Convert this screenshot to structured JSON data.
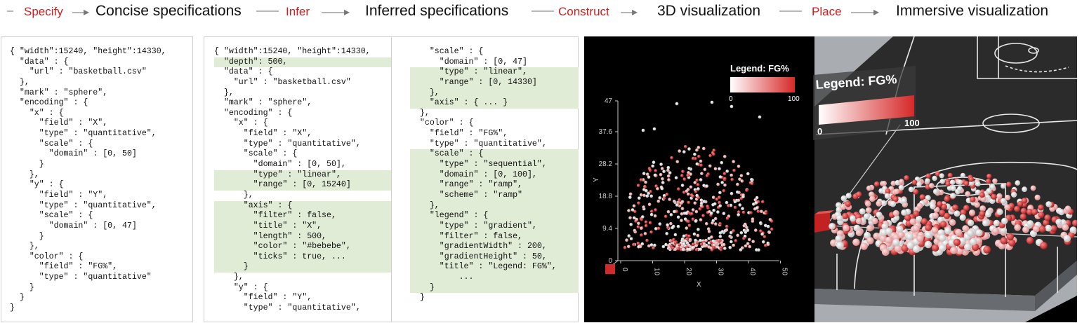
{
  "pipeline": {
    "dash_start": "–",
    "steps": [
      "Specify",
      "Infer",
      "Construct",
      "Place"
    ],
    "specs": [
      "Concise specifications",
      "Inferred specifications",
      "3D visualization",
      "Immersive visualization"
    ]
  },
  "concise_code": [
    "{ \"width\":15240, \"height\":14330,",
    "  \"data\" : {",
    "    \"url\" : \"basketball.csv\"",
    "  },",
    "  \"mark\" : \"sphere\",",
    "  \"encoding\" : {",
    "    \"x\" : {",
    "      \"field\" : \"X\",",
    "      \"type\" : \"quantitative\",",
    "      \"scale\" : {",
    "        \"domain\" : [0, 50]",
    "      }",
    "    },",
    "    \"y\" : {",
    "      \"field\" : \"Y\",",
    "      \"type\" : \"quantitative\",",
    "      \"scale\" : {",
    "        \"domain\" : [0, 47]",
    "      }",
    "    },",
    "    \"color\" : {",
    "      \"field\" : \"FG%\",",
    "      \"type\" : \"quantitative\"",
    "    }",
    "  }",
    "}"
  ],
  "inferred_code_1": [
    "{ \"width\":15240, \"height\":14330,",
    "  \"depth\": 500,",
    "  \"data\" : {",
    "    \"url\" : \"basketball.csv\"",
    "  },",
    "  \"mark\" : \"sphere\",",
    "  \"encoding\" : {",
    "    \"x\" : {",
    "      \"field\" : \"X\",",
    "      \"type\" : \"quantitative\",",
    "      \"scale\" : {",
    "        \"domain\" : [0, 50],",
    "        \"type\" : \"linear\",",
    "        \"range\" : [0, 15240]",
    "      },",
    "      \"axis\" : {",
    "        \"filter\" : false,",
    "        \"title\" : \"X\",",
    "        \"length\" : 500,",
    "        \"color\" : \"#bebebe\",",
    "        \"ticks\" : true, ...",
    "      }",
    "    },",
    "    \"y\" : {",
    "      \"field\" : \"Y\",",
    "      \"type\" : \"quantitative\","
  ],
  "inferred_code_1_highlight": [
    1,
    12,
    13,
    15,
    16,
    17,
    18,
    19,
    20,
    21
  ],
  "inferred_code_2": [
    "    \"scale\" : {",
    "      \"domain\" : [0, 47]",
    "      \"type\" : \"linear\",",
    "      \"range\" : [0, 14330]",
    "    },",
    "    \"axis\" : { ... }",
    "  },",
    "  \"color\" : {",
    "    \"field\" : \"FG%\",",
    "    \"type\" : \"quantitative\",",
    "    \"scale\" : {",
    "      \"type\" : \"sequential\",",
    "      \"domain\" : [0, 100],",
    "      \"range\" : \"ramp\",",
    "      \"scheme\" : \"ramp\"",
    "    },",
    "    \"legend\" : {",
    "      \"type\" : \"gradient\",",
    "      \"filter\" : false,",
    "      \"gradientWidth\" : 200,",
    "      \"gradientHeight\" : 50,",
    "      \"title\" : \"Legend: FG%\",",
    "          ...",
    "    }",
    "  }"
  ],
  "inferred_code_2_highlight": [
    2,
    3,
    4,
    5,
    10,
    11,
    12,
    13,
    14,
    15,
    16,
    17,
    18,
    19,
    20,
    21,
    22,
    23
  ],
  "vis3d": {
    "legend_title": "Legend: FG%",
    "legend_min": "0",
    "legend_max": "100",
    "y_ticks": [
      "0",
      "9.4",
      "18.8",
      "28.2",
      "37.6",
      "47"
    ],
    "x_ticks": [
      "0",
      "10",
      "20",
      "30",
      "40",
      "50"
    ],
    "x_title": "X",
    "y_title": "Y",
    "color_low": "#ffffff",
    "color_high": "#d62828"
  },
  "immersive": {
    "legend_title": "Legend: FG%",
    "legend_min": "0",
    "legend_max": "100"
  }
}
